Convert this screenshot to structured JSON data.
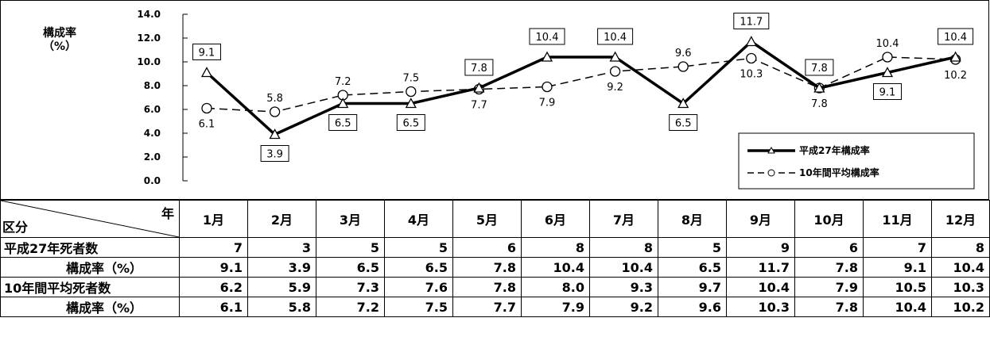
{
  "chart_data": {
    "type": "line",
    "ylabel": "構成率\n（%）",
    "ylim": [
      0,
      14
    ],
    "yticks": [
      "0.0",
      "2.0",
      "4.0",
      "6.0",
      "8.0",
      "10.0",
      "12.0",
      "14.0"
    ],
    "categories": [
      "1月",
      "2月",
      "3月",
      "4月",
      "5月",
      "6月",
      "7月",
      "8月",
      "9月",
      "10月",
      "11月",
      "12月"
    ],
    "legend_position": "bottom-right",
    "series": [
      {
        "name": "平成27年構成率",
        "style": "solid",
        "marker": "triangle",
        "color": "#000000",
        "values": [
          9.1,
          3.9,
          6.5,
          6.5,
          7.8,
          10.4,
          10.4,
          6.5,
          11.7,
          7.8,
          9.1,
          10.4
        ],
        "labels": [
          "9.1",
          "3.9",
          "6.5",
          "6.5",
          "7.8",
          "10.4",
          "10.4",
          "6.5",
          "11.7",
          "7.8",
          "9.1",
          "10.4"
        ]
      },
      {
        "name": "10年間平均構成率",
        "style": "dashed",
        "marker": "circle",
        "color": "#000000",
        "values": [
          6.1,
          5.8,
          7.2,
          7.5,
          7.7,
          7.9,
          9.2,
          9.6,
          10.3,
          7.8,
          10.4,
          10.2
        ],
        "labels": [
          "6.1",
          "5.8",
          "7.2",
          "7.5",
          "7.7",
          "7.9",
          "9.2",
          "9.6",
          "10.3",
          "7.8",
          "10.4",
          "10.2"
        ]
      }
    ]
  },
  "table": {
    "corner_top": "年",
    "corner_bottom": "区分",
    "months": [
      "1月",
      "2月",
      "3月",
      "4月",
      "5月",
      "6月",
      "7月",
      "8月",
      "9月",
      "10月",
      "11月",
      "12月"
    ],
    "rows": [
      {
        "label": "平成27年死者数",
        "values": [
          "7",
          "3",
          "5",
          "5",
          "6",
          "8",
          "8",
          "5",
          "9",
          "6",
          "7",
          "8"
        ]
      },
      {
        "label": "構成率（%）",
        "values": [
          "9.1",
          "3.9",
          "6.5",
          "6.5",
          "7.8",
          "10.4",
          "10.4",
          "6.5",
          "11.7",
          "7.8",
          "9.1",
          "10.4"
        ]
      },
      {
        "label": "10年間平均死者数",
        "values": [
          "6.2",
          "5.9",
          "7.3",
          "7.6",
          "7.8",
          "8.0",
          "9.3",
          "9.7",
          "10.4",
          "7.9",
          "10.5",
          "10.3"
        ]
      },
      {
        "label": "構成率（%）",
        "values": [
          "6.1",
          "5.8",
          "7.2",
          "7.5",
          "7.7",
          "7.9",
          "9.2",
          "9.6",
          "10.3",
          "7.8",
          "10.4",
          "10.2"
        ]
      }
    ]
  }
}
